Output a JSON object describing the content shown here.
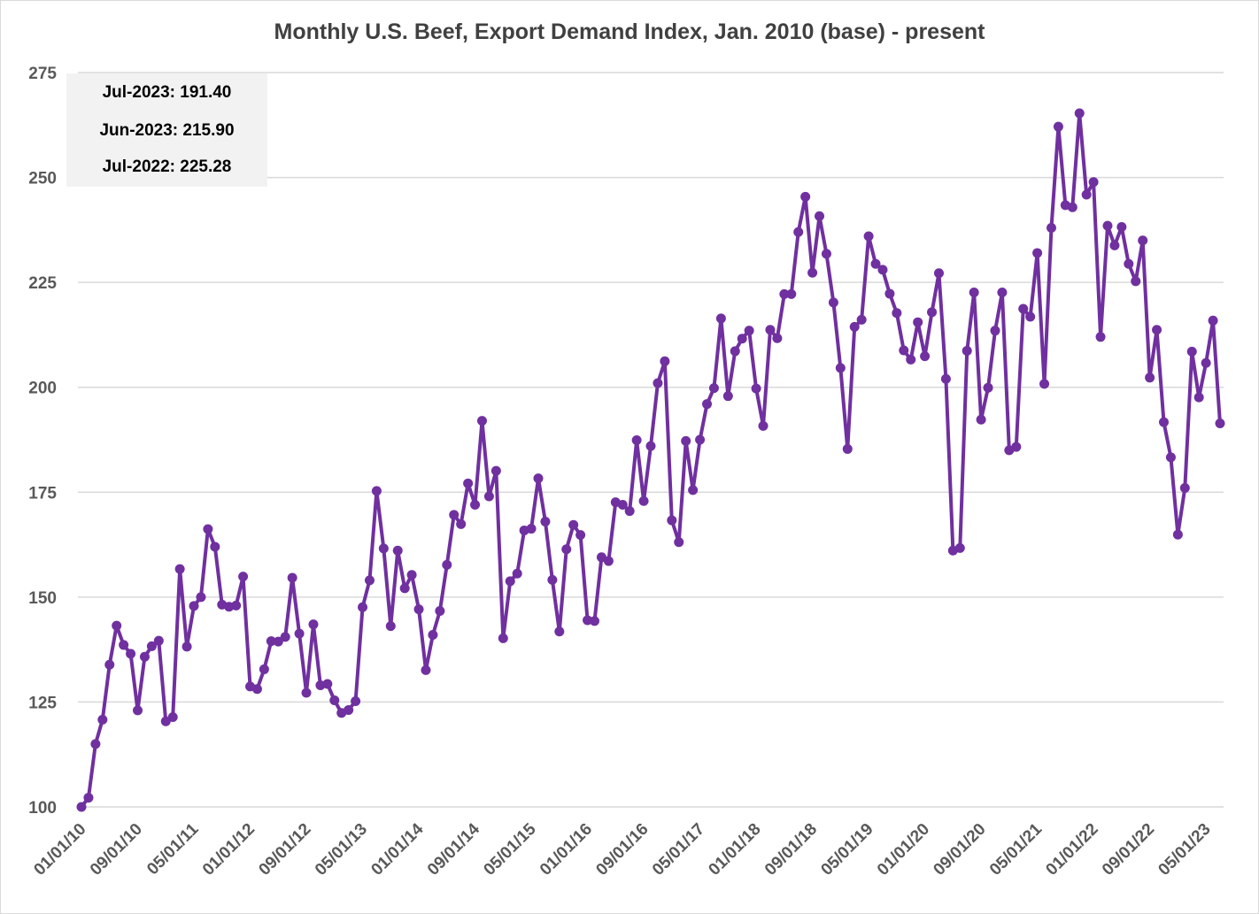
{
  "chart_data": {
    "type": "line",
    "title": "Monthly U.S. Beef, Export Demand Index, Jan. 2010 (base) - present",
    "xlabel": "",
    "ylabel": "",
    "ylim": [
      100,
      275
    ],
    "y_ticks": [
      "100",
      "125",
      "150",
      "175",
      "200",
      "225",
      "250",
      "275"
    ],
    "x_tick_labels": [
      "01/01/10",
      "09/01/10",
      "05/01/11",
      "01/01/12",
      "09/01/12",
      "05/01/13",
      "01/01/14",
      "09/01/14",
      "05/01/15",
      "01/01/16",
      "09/01/16",
      "05/01/17",
      "01/01/18",
      "09/01/18",
      "05/01/19",
      "01/01/20",
      "09/01/20",
      "05/01/21",
      "01/01/22",
      "09/01/22",
      "05/01/23"
    ],
    "x_start": "2010-01",
    "x_end": "2023-07",
    "grid": true,
    "legend": "none",
    "series_color": "#7030a0",
    "series": [
      {
        "values": [
          100.0,
          102.2,
          115.0,
          120.8,
          133.9,
          143.2,
          138.6,
          136.5,
          123.0,
          135.8,
          138.3,
          139.6,
          120.4,
          121.4,
          156.7,
          138.2,
          147.9,
          150.0,
          166.2,
          162.0,
          148.2,
          147.7,
          148.0,
          154.9,
          128.7,
          128.1,
          132.8,
          139.5,
          139.4,
          140.5,
          154.6,
          141.3,
          127.2,
          143.5,
          129.0,
          129.3,
          125.4,
          122.4,
          123.1,
          125.2,
          147.6,
          154.0,
          175.3,
          161.6,
          143.1,
          161.1,
          152.1,
          155.3,
          147.1,
          132.6,
          141.0,
          146.7,
          157.7,
          169.6,
          167.4,
          177.1,
          172.0,
          192.0,
          174.0,
          180.1,
          140.2,
          153.8,
          155.6,
          165.9,
          166.3,
          178.3,
          168.0,
          154.1,
          141.8,
          161.4,
          167.2,
          164.8,
          144.5,
          144.3,
          159.5,
          158.6,
          172.6,
          172.0,
          170.5,
          187.4,
          172.9,
          186.0,
          201.0,
          206.2,
          168.3,
          163.1,
          187.2,
          175.5,
          187.5,
          196.0,
          199.8,
          216.4,
          197.9,
          208.6,
          211.6,
          213.5,
          199.7,
          190.8,
          213.7,
          211.7,
          222.2,
          222.2,
          237.0,
          245.4,
          227.3,
          240.8,
          231.8,
          220.2,
          204.6,
          185.3,
          214.4,
          216.1,
          236.0,
          229.4,
          228.0,
          222.3,
          217.7,
          208.8,
          206.6,
          215.5,
          207.4,
          217.9,
          227.2,
          202.0,
          161.1,
          161.7,
          208.7,
          222.6,
          192.3,
          199.9,
          213.5,
          222.6,
          185.0,
          185.8,
          218.7,
          216.8,
          232.0,
          200.8,
          238.0,
          262.1,
          243.4,
          242.9,
          265.3,
          245.9,
          248.9,
          212.0,
          238.5,
          233.8,
          238.2,
          229.4,
          225.28,
          235.0,
          202.3,
          213.7,
          191.7,
          183.3,
          164.9,
          176.0,
          208.5,
          197.6,
          205.8,
          215.9,
          191.4
        ]
      }
    ],
    "annotations": [
      {
        "label": "Jul-2023:",
        "value": "191.40"
      },
      {
        "label": "Jun-2023:",
        "value": "215.90"
      },
      {
        "label": "Jul-2022:",
        "value": "225.28"
      }
    ]
  }
}
